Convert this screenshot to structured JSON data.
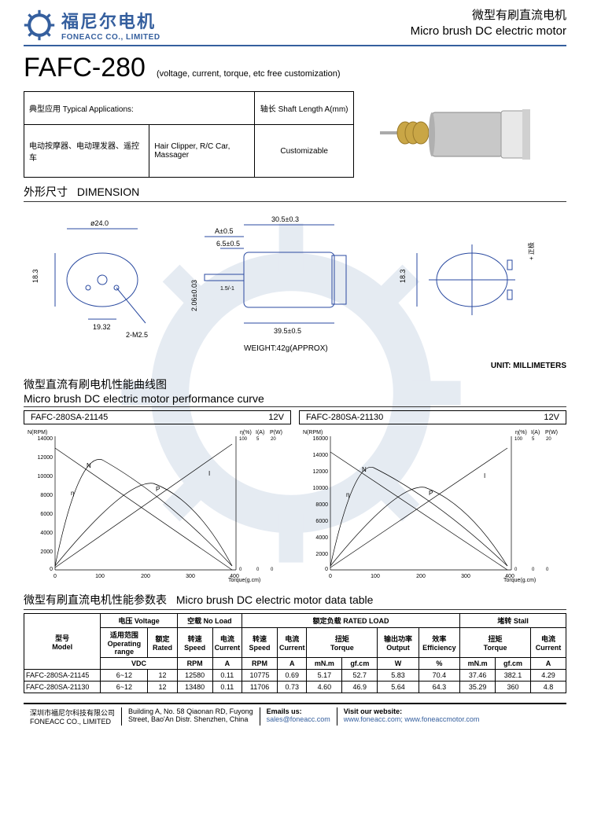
{
  "header": {
    "logo_cn": "福尼尔电机",
    "logo_en": "FONEACC CO., LIMITED",
    "title_cn": "微型有刷直流电机",
    "title_en": "Micro brush DC electric motor",
    "brand_color": "#355f9e"
  },
  "model": {
    "code": "FAFC-280",
    "note": "(voltage, current, torque, etc free customization)"
  },
  "apps": {
    "h1_cn": "典型应用",
    "h1_en": "Typical Applications:",
    "h2_cn": "轴长",
    "h2_en": "Shaft Length A(mm)",
    "cell_cn": "电动按摩器、电动理发器、遥控车",
    "cell_en": "Hair Clipper, R/C Car, Massager",
    "shaft": "Customizable"
  },
  "sections": {
    "dim_cn": "外形尺寸",
    "dim_en": "DIMENSION",
    "curve_cn": "微型直流有刷电机性能曲线图",
    "curve_en": "Micro brush DC electric motor performance curve",
    "table_cn": "微型有刷直流电机性能参数表",
    "table_en": "Micro brush DC electric motor data table",
    "unit": "UNIT: MILLIMETERS"
  },
  "dims": {
    "d": "ø24.0",
    "h": "18.3",
    "holes": "2-M2.5",
    "pitch": "19.32",
    "A": "A±0.5",
    "shaft_len": "6.5±0.5",
    "body": "30.5±0.3",
    "total": "39.5±0.5",
    "shaft_d": "2.06±0.03",
    "flat": "1.5/-1",
    "weight": "WEIGHT:42g(APPROX)",
    "h2": "18.3",
    "pos_cn": "+ 正极"
  },
  "curves": [
    {
      "model": "FAFC-280SA-21145",
      "voltage": "12V",
      "rpm_max": 14000,
      "eff_max": 100,
      "i_max": 5,
      "p_max": 20,
      "t_max": 400
    },
    {
      "model": "FAFC-280SA-21130",
      "voltage": "12V",
      "rpm_max": 16000,
      "eff_max": 100,
      "i_max": 5,
      "p_max": 20,
      "t_max": 400
    }
  ],
  "curve_axis": {
    "y1": "N(RPM)",
    "y2": "η(%)",
    "y3": "I(A)",
    "y4": "P(W)",
    "x": "Torque(g.cm)",
    "labels": [
      "N",
      "η",
      "I",
      "P"
    ]
  },
  "table": {
    "h_model_cn": "型号",
    "h_model_en": "Model",
    "h_volt_cn": "电压",
    "h_volt_en": "Voltage",
    "h_noload_cn": "空载",
    "h_noload_en": "No Load",
    "h_rated_cn": "额定负载",
    "h_rated_en": "RATED LOAD",
    "h_stall_cn": "堵转",
    "h_stall_en": "Stall",
    "h_range_cn": "适用范围",
    "h_range_en": "Operating range",
    "h_rated2_cn": "额定",
    "h_rated2_en": "Rated",
    "h_speed_cn": "转速",
    "h_speed_en": "Speed",
    "h_curr_cn": "电流",
    "h_curr_en": "Current",
    "h_torque_cn": "扭矩",
    "h_torque_en": "Torque",
    "h_out_cn": "输出功率",
    "h_out_en": "Output",
    "h_eff_cn": "效率",
    "h_eff_en": "Efficiency",
    "u_vdc": "VDC",
    "u_rpm": "RPM",
    "u_a": "A",
    "u_mnm": "mN.m",
    "u_gfcm": "gf.cm",
    "u_w": "W",
    "u_pct": "%",
    "rows": [
      {
        "m": "FAFC-280SA-21145",
        "range": "6~12",
        "rated": "12",
        "nl_rpm": "12580",
        "nl_a": "0.11",
        "rl_rpm": "10775",
        "rl_a": "0.69",
        "t_mnm": "5.17",
        "t_gf": "52.7",
        "out": "5.83",
        "eff": "70.4",
        "s_mnm": "37.46",
        "s_gf": "382.1",
        "s_a": "4.29"
      },
      {
        "m": "FAFC-280SA-21130",
        "range": "6~12",
        "rated": "12",
        "nl_rpm": "13480",
        "nl_a": "0.11",
        "rl_rpm": "11706",
        "rl_a": "0.73",
        "t_mnm": "4.60",
        "t_gf": "46.9",
        "out": "5.64",
        "eff": "64.3",
        "s_mnm": "35.29",
        "s_gf": "360",
        "s_a": "4.8"
      }
    ]
  },
  "footer": {
    "co_cn": "深圳市福尼尔科技有限公司",
    "co_en": "FONEACC CO., LIMITED",
    "addr1": "Building A, No. 58 Qiaonan RD, Fuyong",
    "addr2": "Street, Bao'An Distr. Shenzhen, China",
    "email_h": "Emails us:",
    "email": "sales@foneacc.com",
    "web_h": "Visit our website:",
    "web1": "www.foneacc.com;",
    "web2": "www.foneaccmotor.com"
  }
}
